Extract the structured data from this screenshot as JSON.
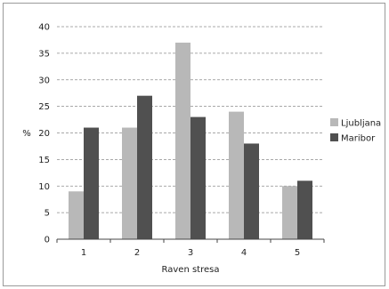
{
  "chart_data": {
    "type": "bar",
    "title": "",
    "xlabel": "Raven stresa",
    "ylabel": "%",
    "ylim": [
      0,
      40
    ],
    "yticks": [
      0,
      5,
      10,
      15,
      20,
      25,
      30,
      35,
      40
    ],
    "categories": [
      "1",
      "2",
      "3",
      "4",
      "5"
    ],
    "grid": true,
    "legend_position": "right",
    "series": [
      {
        "name": "Ljubljana",
        "color": "#b8b8b8",
        "values": [
          9,
          21,
          37,
          24,
          10
        ]
      },
      {
        "name": "Maribor",
        "color": "#505050",
        "values": [
          21,
          27,
          23,
          18,
          11
        ]
      }
    ]
  }
}
